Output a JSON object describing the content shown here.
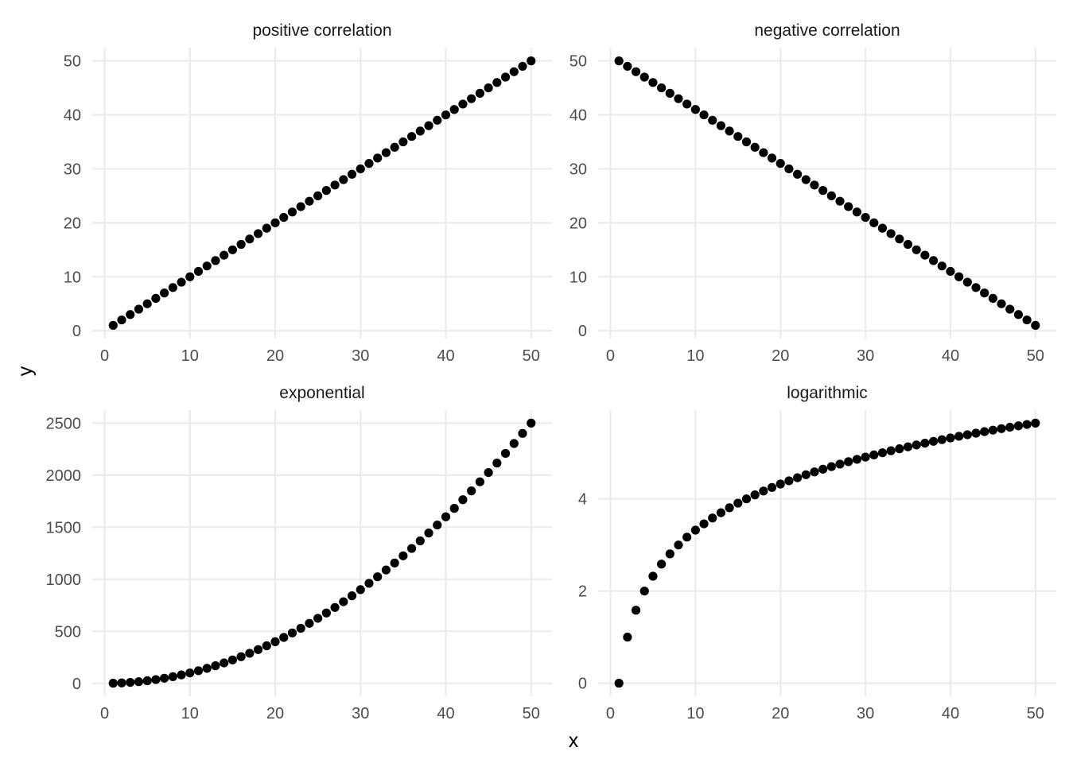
{
  "chart_data": {
    "type": "scatter",
    "xlabel": "x",
    "ylabel": "y",
    "grid": true,
    "colors": {
      "points": "#000000",
      "grid": "#ebebeb",
      "text": "#4d4d4d"
    },
    "panels": [
      {
        "title": "positive correlation",
        "xlim": [
          1,
          50
        ],
        "ylim": [
          1,
          50
        ],
        "xticks": [
          0,
          10,
          20,
          30,
          40,
          50
        ],
        "yticks": [
          0,
          10,
          20,
          30,
          40,
          50
        ],
        "x": [
          1,
          2,
          3,
          4,
          5,
          6,
          7,
          8,
          9,
          10,
          11,
          12,
          13,
          14,
          15,
          16,
          17,
          18,
          19,
          20,
          21,
          22,
          23,
          24,
          25,
          26,
          27,
          28,
          29,
          30,
          31,
          32,
          33,
          34,
          35,
          36,
          37,
          38,
          39,
          40,
          41,
          42,
          43,
          44,
          45,
          46,
          47,
          48,
          49,
          50
        ],
        "y": [
          1,
          2,
          3,
          4,
          5,
          6,
          7,
          8,
          9,
          10,
          11,
          12,
          13,
          14,
          15,
          16,
          17,
          18,
          19,
          20,
          21,
          22,
          23,
          24,
          25,
          26,
          27,
          28,
          29,
          30,
          31,
          32,
          33,
          34,
          35,
          36,
          37,
          38,
          39,
          40,
          41,
          42,
          43,
          44,
          45,
          46,
          47,
          48,
          49,
          50
        ]
      },
      {
        "title": "negative correlation",
        "xlim": [
          1,
          50
        ],
        "ylim": [
          1,
          50
        ],
        "xticks": [
          0,
          10,
          20,
          30,
          40,
          50
        ],
        "yticks": [
          0,
          10,
          20,
          30,
          40,
          50
        ],
        "x": [
          1,
          2,
          3,
          4,
          5,
          6,
          7,
          8,
          9,
          10,
          11,
          12,
          13,
          14,
          15,
          16,
          17,
          18,
          19,
          20,
          21,
          22,
          23,
          24,
          25,
          26,
          27,
          28,
          29,
          30,
          31,
          32,
          33,
          34,
          35,
          36,
          37,
          38,
          39,
          40,
          41,
          42,
          43,
          44,
          45,
          46,
          47,
          48,
          49,
          50
        ],
        "y": [
          50,
          49,
          48,
          47,
          46,
          45,
          44,
          43,
          42,
          41,
          40,
          39,
          38,
          37,
          36,
          35,
          34,
          33,
          32,
          31,
          30,
          29,
          28,
          27,
          26,
          25,
          24,
          23,
          22,
          21,
          20,
          19,
          18,
          17,
          16,
          15,
          14,
          13,
          12,
          11,
          10,
          9,
          8,
          7,
          6,
          5,
          4,
          3,
          2,
          1
        ]
      },
      {
        "title": "exponential",
        "xlim": [
          1,
          50
        ],
        "ylim": [
          1,
          2500
        ],
        "xticks": [
          0,
          10,
          20,
          30,
          40,
          50
        ],
        "yticks": [
          0,
          500,
          1000,
          1500,
          2000,
          2500
        ],
        "x": [
          1,
          2,
          3,
          4,
          5,
          6,
          7,
          8,
          9,
          10,
          11,
          12,
          13,
          14,
          15,
          16,
          17,
          18,
          19,
          20,
          21,
          22,
          23,
          24,
          25,
          26,
          27,
          28,
          29,
          30,
          31,
          32,
          33,
          34,
          35,
          36,
          37,
          38,
          39,
          40,
          41,
          42,
          43,
          44,
          45,
          46,
          47,
          48,
          49,
          50
        ],
        "y": [
          1,
          4,
          9,
          16,
          25,
          36,
          49,
          64,
          81,
          100,
          121,
          144,
          169,
          196,
          225,
          256,
          289,
          324,
          361,
          400,
          441,
          484,
          529,
          576,
          625,
          676,
          729,
          784,
          841,
          900,
          961,
          1024,
          1089,
          1156,
          1225,
          1296,
          1369,
          1444,
          1521,
          1600,
          1681,
          1764,
          1849,
          1936,
          2025,
          2116,
          2209,
          2304,
          2401,
          2500
        ]
      },
      {
        "title": "logarithmic",
        "xlim": [
          1,
          50
        ],
        "ylim": [
          0,
          5.644
        ],
        "xticks": [
          0,
          10,
          20,
          30,
          40,
          50
        ],
        "yticks": [
          0,
          2,
          4
        ],
        "x": [
          1,
          2,
          3,
          4,
          5,
          6,
          7,
          8,
          9,
          10,
          11,
          12,
          13,
          14,
          15,
          16,
          17,
          18,
          19,
          20,
          21,
          22,
          23,
          24,
          25,
          26,
          27,
          28,
          29,
          30,
          31,
          32,
          33,
          34,
          35,
          36,
          37,
          38,
          39,
          40,
          41,
          42,
          43,
          44,
          45,
          46,
          47,
          48,
          49,
          50
        ],
        "y": [
          0,
          1,
          1.585,
          2,
          2.322,
          2.585,
          2.807,
          3,
          3.17,
          3.322,
          3.459,
          3.585,
          3.7,
          3.807,
          3.907,
          4,
          4.087,
          4.17,
          4.248,
          4.322,
          4.392,
          4.459,
          4.524,
          4.585,
          4.644,
          4.7,
          4.755,
          4.807,
          4.858,
          4.907,
          4.954,
          5,
          5.044,
          5.087,
          5.129,
          5.17,
          5.209,
          5.248,
          5.285,
          5.322,
          5.358,
          5.392,
          5.426,
          5.459,
          5.492,
          5.524,
          5.555,
          5.585,
          5.615,
          5.644
        ]
      }
    ]
  }
}
